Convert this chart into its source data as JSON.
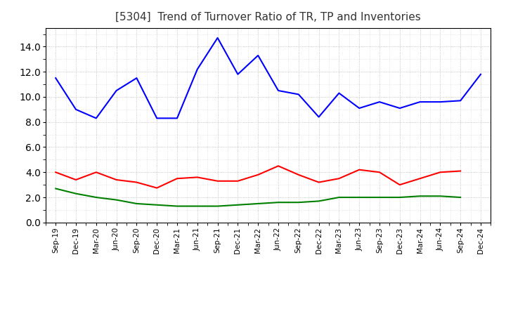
{
  "title": "[5304]  Trend of Turnover Ratio of TR, TP and Inventories",
  "labels": [
    "Sep-19",
    "Dec-19",
    "Mar-20",
    "Jun-20",
    "Sep-20",
    "Dec-20",
    "Mar-21",
    "Jun-21",
    "Sep-21",
    "Dec-21",
    "Mar-22",
    "Jun-22",
    "Sep-22",
    "Dec-22",
    "Mar-23",
    "Jun-23",
    "Sep-23",
    "Dec-23",
    "Mar-24",
    "Jun-24",
    "Sep-24",
    "Dec-24"
  ],
  "trade_receivables": [
    4.0,
    3.4,
    4.0,
    3.4,
    3.2,
    2.75,
    3.5,
    3.6,
    3.3,
    3.3,
    3.8,
    4.5,
    3.8,
    3.2,
    3.5,
    4.2,
    4.0,
    3.0,
    3.5,
    4.0,
    4.1,
    null
  ],
  "trade_payables": [
    11.5,
    9.0,
    8.3,
    10.5,
    11.5,
    8.3,
    8.3,
    12.2,
    14.7,
    11.8,
    13.3,
    10.5,
    10.2,
    8.4,
    10.3,
    9.1,
    9.6,
    9.1,
    9.6,
    9.6,
    9.7,
    11.8
  ],
  "inventories": [
    2.7,
    2.3,
    2.0,
    1.8,
    1.5,
    1.4,
    1.3,
    1.3,
    1.3,
    1.4,
    1.5,
    1.6,
    1.6,
    1.7,
    2.0,
    2.0,
    2.0,
    2.0,
    2.1,
    2.1,
    2.0,
    null
  ],
  "ylim": [
    0.0,
    15.5
  ],
  "yticks": [
    0.0,
    2.0,
    4.0,
    6.0,
    8.0,
    10.0,
    12.0,
    14.0
  ],
  "colors": {
    "trade_receivables": "#ff0000",
    "trade_payables": "#0000ff",
    "inventories": "#008000"
  },
  "background_color": "#ffffff",
  "grid_color": "#999999"
}
